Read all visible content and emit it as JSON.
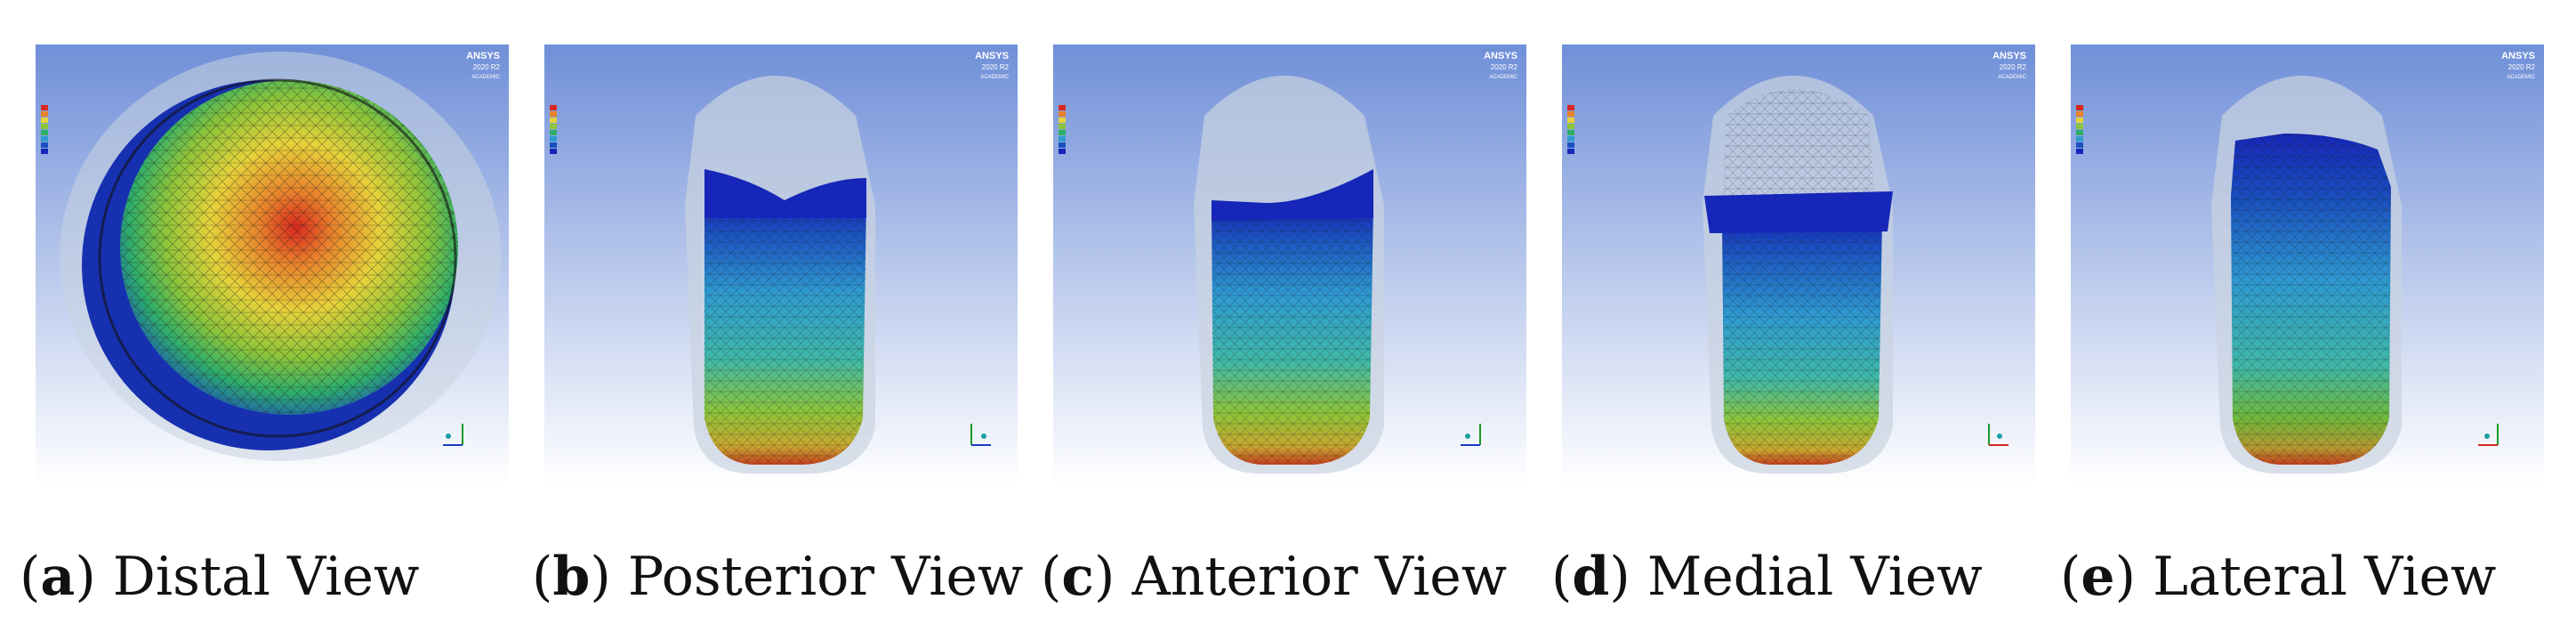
{
  "panels": [
    {
      "letter": "a",
      "caption": "Distal View",
      "brand": "ANSYS",
      "version": "2020 R2",
      "edition": "ACADEMIC",
      "view": "distal"
    },
    {
      "letter": "b",
      "caption": "Posterior View",
      "brand": "ANSYS",
      "version": "2020 R2",
      "edition": "ACADEMIC",
      "view": "limb"
    },
    {
      "letter": "c",
      "caption": "Anterior View",
      "brand": "ANSYS",
      "version": "2020 R2",
      "edition": "ACADEMIC",
      "view": "limb"
    },
    {
      "letter": "d",
      "caption": "Medial View",
      "brand": "ANSYS",
      "version": "2020 R2",
      "edition": "ACADEMIC",
      "view": "limb-mesh"
    },
    {
      "letter": "e",
      "caption": "Lateral View",
      "brand": "ANSYS",
      "version": "2020 R2",
      "edition": "ACADEMIC",
      "view": "limb-lateral"
    }
  ],
  "colors": {
    "background_top": "#6f8fd8",
    "background_bottom": "#ffffff",
    "socket": "#c9d3e0",
    "stress_high": "#d8281e",
    "stress_mid": "#e6d23a",
    "stress_low": "#2f9ad0",
    "stress_min": "#1626b8"
  }
}
